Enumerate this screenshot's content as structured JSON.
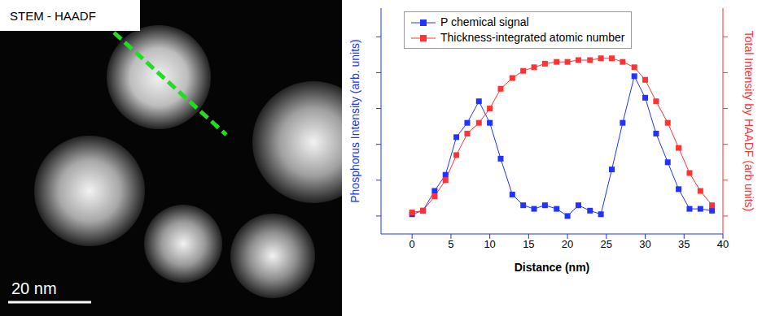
{
  "image": {
    "title": "STEM - HAADF",
    "scale_bar": "20 nm"
  },
  "chart_data": {
    "type": "line",
    "x_label": "Distance (nm)",
    "y_label": "Phosphorus Intensity (arb. units)",
    "y2_label": "Total Intensity by HAADF (arb units)",
    "x": [
      0,
      1.4,
      2.9,
      4.3,
      5.7,
      7.1,
      8.6,
      10.0,
      11.4,
      12.9,
      14.3,
      15.7,
      17.1,
      18.6,
      20.0,
      21.4,
      22.9,
      24.3,
      25.7,
      27.1,
      28.6,
      30.0,
      31.4,
      32.9,
      34.3,
      35.7,
      37.1,
      38.6
    ],
    "series": [
      {
        "name": "P chemical signal",
        "color": "#2233ff",
        "marker": "square",
        "values": [
          0.05,
          0.15,
          0.7,
          1.15,
          2.2,
          2.6,
          3.2,
          2.6,
          1.6,
          0.6,
          0.3,
          0.2,
          0.3,
          0.2,
          0.0,
          0.3,
          0.15,
          0.05,
          1.3,
          2.6,
          3.9,
          3.3,
          2.3,
          1.5,
          0.75,
          0.2,
          0.2,
          0.15
        ]
      },
      {
        "name": "Thickness-integrated atomic number",
        "color": "#ff3333",
        "marker": "square",
        "axis": "y2",
        "values": [
          0.1,
          0.15,
          0.55,
          1.0,
          1.7,
          2.3,
          2.6,
          3.0,
          3.55,
          3.85,
          4.05,
          4.15,
          4.25,
          4.3,
          4.3,
          4.35,
          4.35,
          4.4,
          4.4,
          4.3,
          4.15,
          3.8,
          3.2,
          2.6,
          1.9,
          1.2,
          0.7,
          0.3
        ]
      }
    ],
    "xlim": [
      -4,
      40
    ],
    "xticks": [
      0,
      5,
      10,
      15,
      20,
      25,
      30,
      35,
      40
    ],
    "ylim": [
      -0.5,
      5.8
    ],
    "yticks": [
      0,
      1,
      2,
      3,
      4,
      5
    ],
    "y2lim": [
      -0.5,
      5.8
    ],
    "y2ticks": [
      0,
      1,
      2,
      3,
      4,
      5
    ],
    "tick_labels": "x",
    "grid": false,
    "legend": "top-left"
  }
}
